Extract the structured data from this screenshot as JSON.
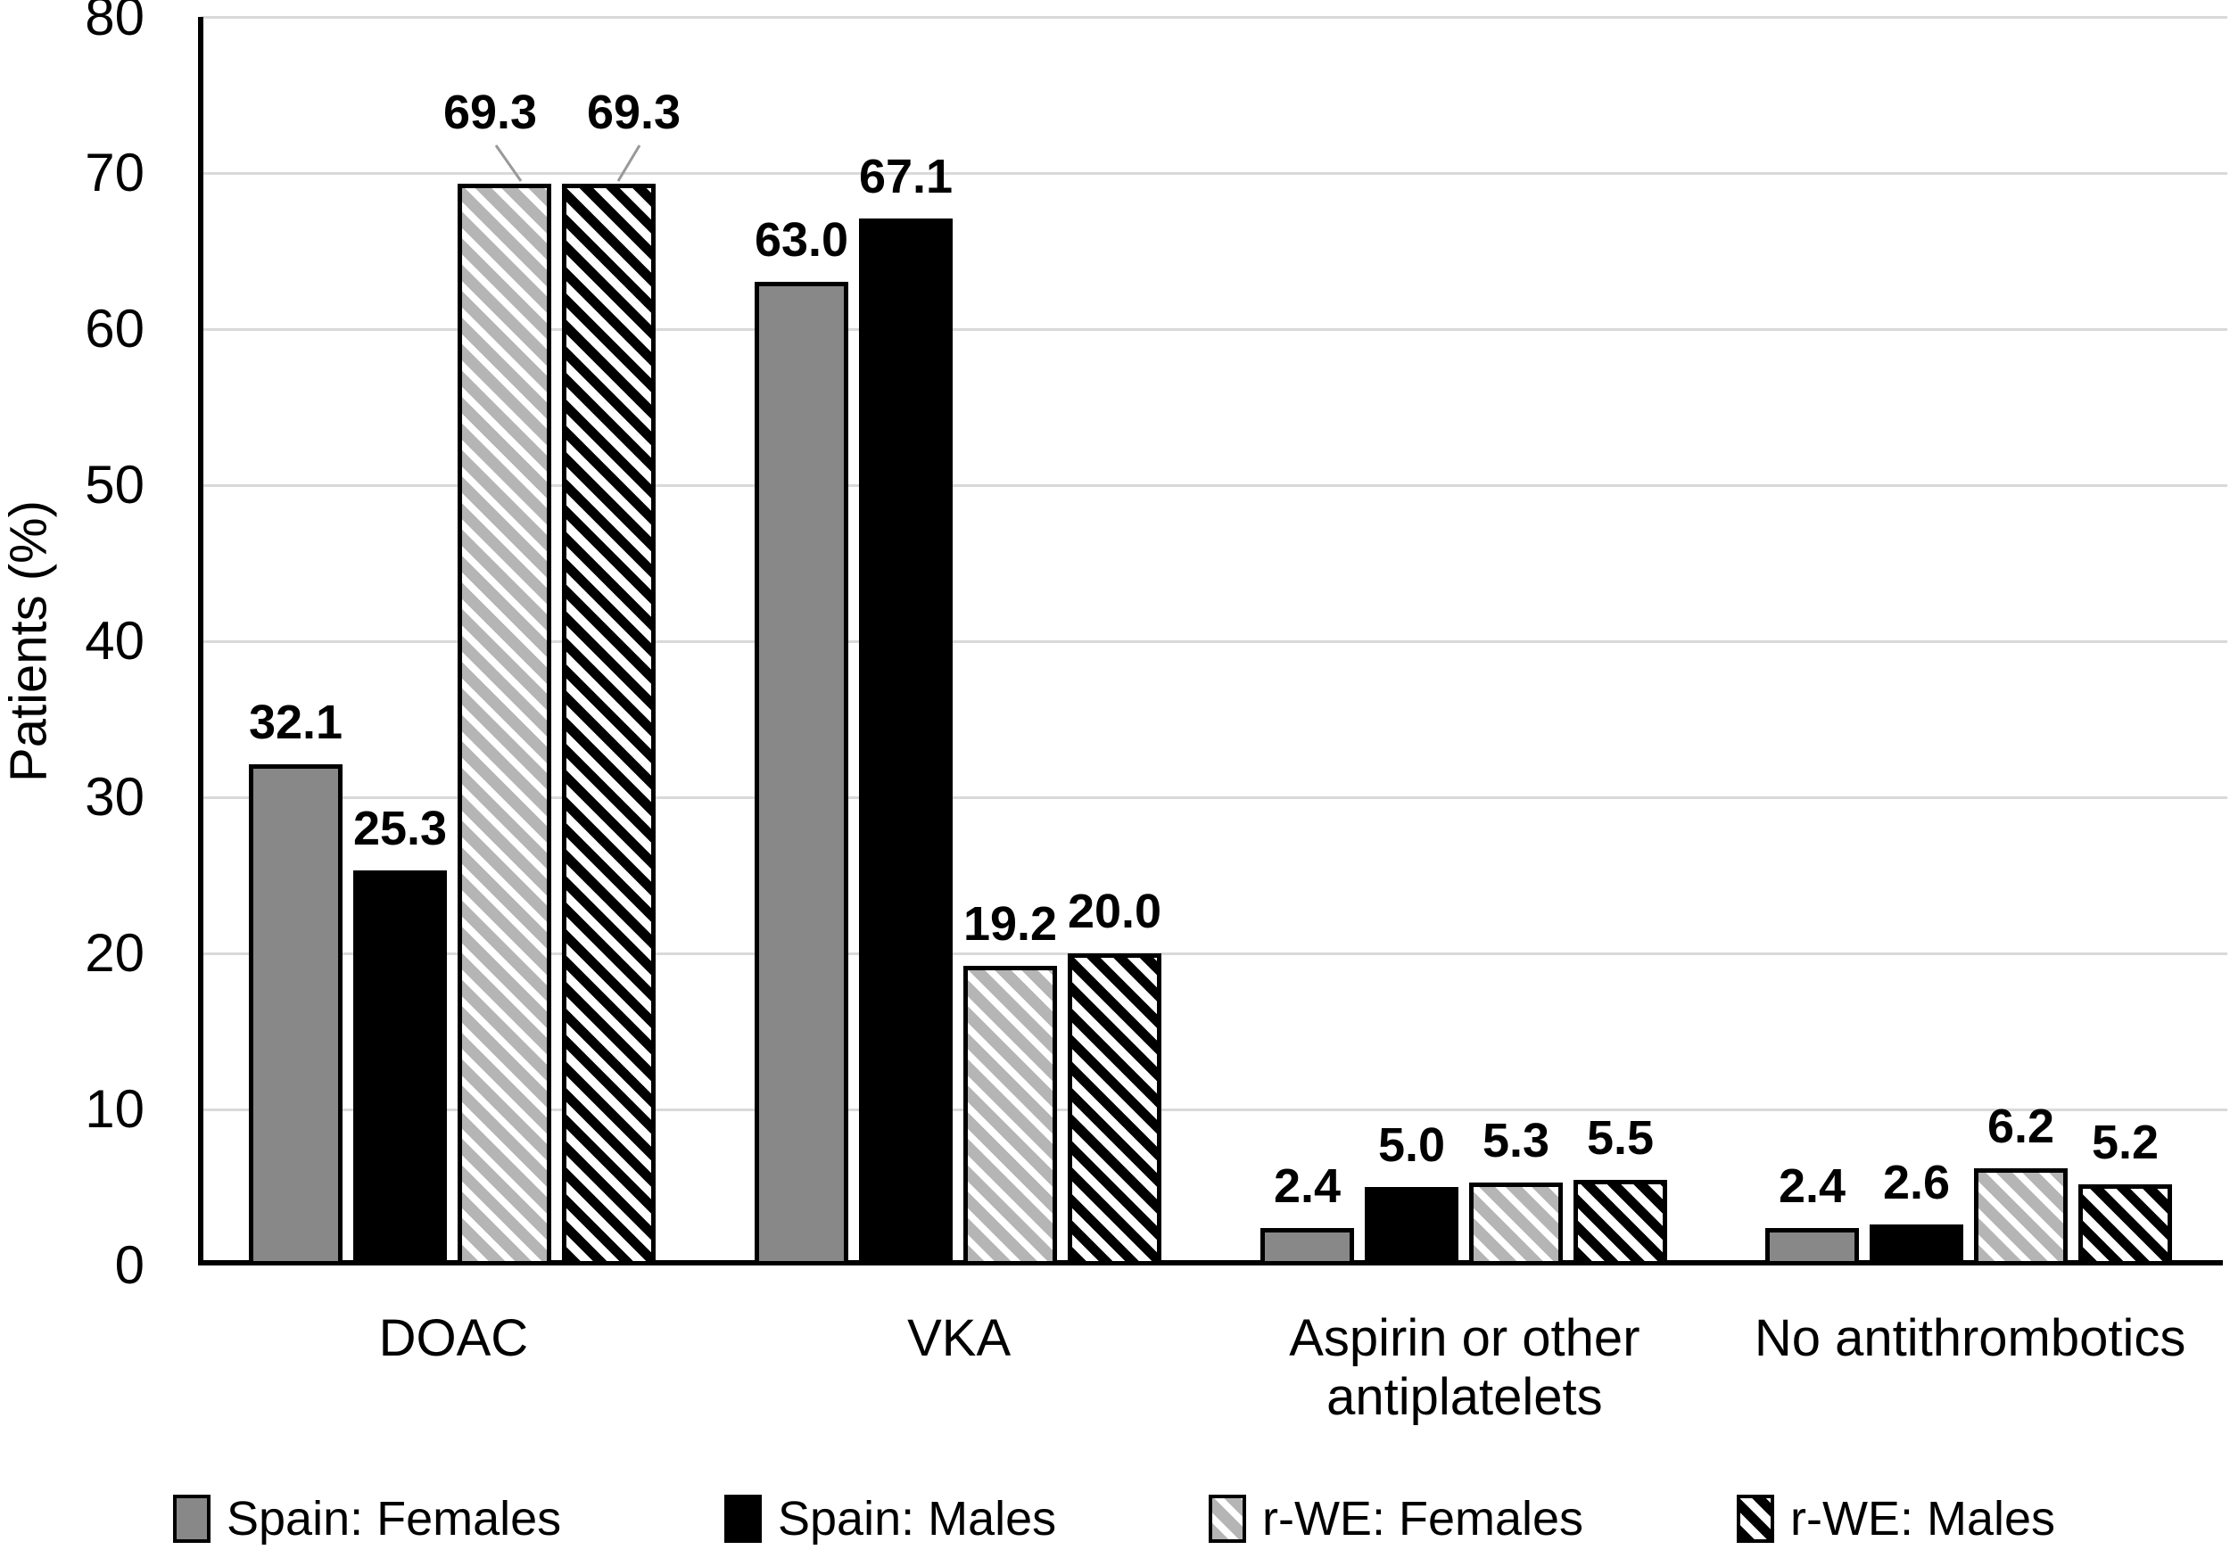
{
  "figure_background": "#ffffff",
  "chart_data": {
    "type": "bar",
    "title": "",
    "xlabel": "",
    "ylabel": "Patients (%)",
    "ylim": [
      0,
      80
    ],
    "yticks": [
      0,
      10,
      20,
      30,
      40,
      50,
      60,
      70,
      80
    ],
    "grid": true,
    "gridline_color": "#d9d9d9",
    "axis_color": "#000000",
    "legend_position": "bottom",
    "data_label_format": "0.0",
    "categories": [
      "DOAC",
      "VKA",
      "Aspirin or other antiplatelets",
      "No antithrombotics"
    ],
    "series": [
      {
        "name": "Spain: Females",
        "fill_color": "#888888",
        "hatch": false,
        "values": [
          32.1,
          63.0,
          2.4,
          2.4
        ]
      },
      {
        "name": "Spain: Males",
        "fill_color": "#000000",
        "hatch": false,
        "values": [
          25.3,
          67.1,
          5.0,
          2.6
        ]
      },
      {
        "name": "r-WE: Females",
        "fill_color": "#b5b5b5",
        "hatch": true,
        "values": [
          69.3,
          19.2,
          5.3,
          6.2
        ]
      },
      {
        "name": "r-WE: Males",
        "fill_color": "#000000",
        "hatch": true,
        "values": [
          69.3,
          20.0,
          5.5,
          5.2
        ]
      }
    ]
  }
}
